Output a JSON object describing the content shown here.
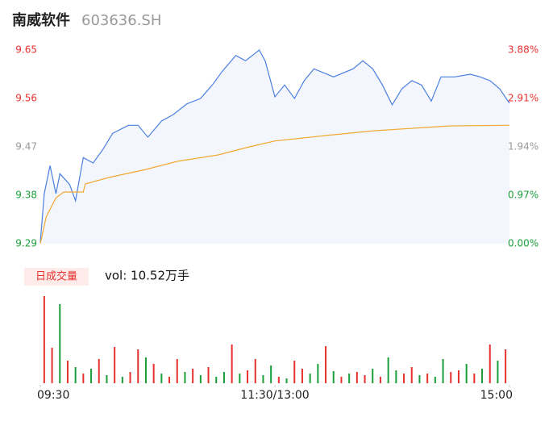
{
  "title": "南威软件",
  "code": "603636.SH",
  "chart_data": [
    {
      "type": "line",
      "xlim": [
        0,
        240
      ],
      "xticks": [
        {
          "value": 0,
          "label": "09:30"
        },
        {
          "value": 120,
          "label": "11:30/13:00"
        },
        {
          "value": 240,
          "label": "15:00"
        }
      ],
      "ylim": [
        9.29,
        9.65
      ],
      "yticks": [
        9.65,
        9.56,
        9.47,
        9.38,
        9.29
      ],
      "y2lim": [
        0,
        3.88
      ],
      "y2ticks": [
        {
          "value": 3.88,
          "label": "3.88%"
        },
        {
          "value": 2.91,
          "label": "2.91%"
        },
        {
          "value": 1.94,
          "label": "1.94%"
        },
        {
          "value": 0.97,
          "label": "0.97%"
        },
        {
          "value": 0,
          "label": "0.00%"
        }
      ],
      "up_color": "#e8312f",
      "down_color": "#1a9e3a",
      "flat_color": "#999999",
      "series": [
        {
          "color": "#4a7fe0",
          "area_color": "#f3f6fc",
          "x": [
            0,
            2,
            5,
            8,
            10,
            15,
            18,
            22,
            27,
            32,
            37,
            45,
            50,
            55,
            62,
            68,
            75,
            82,
            88,
            93,
            100,
            105,
            112,
            115,
            120,
            125,
            130,
            135,
            140,
            150,
            160,
            165,
            170,
            175,
            180,
            185,
            190,
            195,
            200,
            205,
            212,
            220,
            225,
            230,
            235,
            240
          ],
          "values": [
            9.293,
            9.383,
            9.435,
            9.383,
            9.42,
            9.4,
            9.37,
            9.45,
            9.44,
            9.465,
            9.495,
            9.51,
            9.51,
            9.488,
            9.518,
            9.53,
            9.55,
            9.56,
            9.585,
            9.61,
            9.64,
            9.63,
            9.65,
            9.63,
            9.563,
            9.585,
            9.56,
            9.593,
            9.615,
            9.6,
            9.615,
            9.63,
            9.615,
            9.585,
            9.548,
            9.578,
            9.593,
            9.585,
            9.555,
            9.6,
            9.6,
            9.605,
            9.6,
            9.593,
            9.578,
            9.551
          ]
        },
        {
          "color": "#f0a830",
          "x": [
            0,
            3,
            8,
            12,
            22,
            23,
            35,
            54,
            70,
            91,
            107,
            120,
            146,
            171,
            210,
            240
          ],
          "values": [
            9.29,
            9.34,
            9.375,
            9.386,
            9.386,
            9.401,
            9.413,
            9.428,
            9.443,
            9.455,
            9.47,
            9.481,
            9.491,
            9.5,
            9.509,
            9.51
          ]
        }
      ]
    },
    {
      "type": "bar",
      "label": "日成交量",
      "summary": "vol: 10.52万手",
      "xlim": [
        0,
        240
      ],
      "ylim": [
        0,
        110
      ],
      "up_color": "#e8312f",
      "down_color": "#1a9e3a",
      "x": [
        2,
        6,
        10,
        14,
        18,
        22,
        26,
        30,
        34,
        38,
        42,
        46,
        50,
        54,
        58,
        62,
        66,
        70,
        74,
        78,
        82,
        86,
        90,
        94,
        98,
        102,
        106,
        110,
        114,
        118,
        122,
        126,
        130,
        134,
        138,
        142,
        146,
        150,
        154,
        158,
        162,
        166,
        170,
        174,
        178,
        182,
        186,
        190,
        194,
        198,
        202,
        206,
        210,
        214,
        218,
        222,
        226,
        230,
        234,
        238
      ],
      "values": [
        108,
        44,
        98,
        28,
        20,
        12,
        18,
        30,
        10,
        45,
        8,
        14,
        42,
        32,
        24,
        12,
        8,
        30,
        14,
        18,
        10,
        20,
        8,
        14,
        48,
        12,
        16,
        30,
        10,
        22,
        8,
        6,
        28,
        18,
        12,
        24,
        46,
        15,
        8,
        12,
        14,
        10,
        18,
        8,
        32,
        16,
        12,
        20,
        10,
        12,
        8,
        30,
        14,
        16,
        24,
        12,
        18,
        48,
        28,
        42
      ],
      "up": [
        true,
        true,
        false,
        true,
        false,
        true,
        false,
        true,
        false,
        true,
        false,
        true,
        true,
        false,
        true,
        false,
        true,
        true,
        false,
        true,
        false,
        true,
        false,
        false,
        true,
        false,
        true,
        true,
        false,
        false,
        true,
        false,
        true,
        true,
        false,
        false,
        true,
        false,
        true,
        false,
        true,
        true,
        false,
        true,
        false,
        false,
        true,
        true,
        false,
        true,
        false,
        false,
        true,
        true,
        false,
        true,
        false,
        true,
        false,
        true
      ]
    }
  ]
}
